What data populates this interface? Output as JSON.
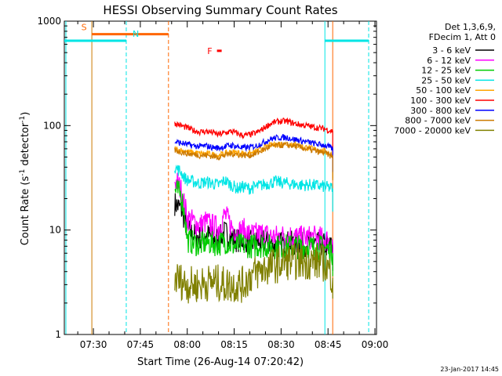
{
  "chart_data": {
    "type": "line",
    "title": "HESSI Observing Summary Count Rates",
    "xlabel": "Start Time (26-Aug-14 07:20:42)",
    "ylabel_main": "Count Rate (s",
    "ylabel_sup1": "-1",
    "ylabel_mid": " detector",
    "ylabel_sup2": "-1",
    "ylabel_end": ")",
    "y_scale": "log",
    "xlim": [
      20.7,
      120.5
    ],
    "ylim": [
      1,
      1000
    ],
    "x_unit": "minutes after 07:00 UT",
    "x_ticks": [
      {
        "value": 30,
        "label": "07:30"
      },
      {
        "value": 45,
        "label": "07:45"
      },
      {
        "value": 60,
        "label": "08:00"
      },
      {
        "value": 75,
        "label": "08:15"
      },
      {
        "value": 90,
        "label": "08:30"
      },
      {
        "value": 105,
        "label": "08:45"
      },
      {
        "value": 120,
        "label": "09:00"
      }
    ],
    "y_ticks": [
      {
        "value": 1,
        "label": "1"
      },
      {
        "value": 10,
        "label": "10"
      },
      {
        "value": 100,
        "label": "100"
      },
      {
        "value": 1000,
        "label": "1000"
      }
    ],
    "legend_header": [
      "Det 1,3,6,9,",
      "FDecim 1, Att 0"
    ],
    "legend_placement": "right",
    "series": [
      {
        "name": "3 - 6 keV",
        "color": "#000000",
        "x": [
          56,
          57,
          58,
          59,
          60,
          62,
          64,
          66,
          68,
          70,
          72,
          74,
          76,
          78,
          80,
          84,
          88,
          92,
          96,
          100,
          104,
          106.5
        ],
        "y": [
          18,
          17,
          16,
          13,
          10,
          9,
          8.5,
          9,
          8.5,
          8.2,
          9.5,
          8.5,
          8,
          8.2,
          7.5,
          7.8,
          7.2,
          7.6,
          7.3,
          7.4,
          7.2,
          6.8
        ]
      },
      {
        "name": "6 - 12 keV",
        "color": "#ff00ff",
        "x": [
          56,
          57,
          58,
          59,
          60,
          62,
          64,
          66,
          68,
          70,
          72,
          74,
          76,
          78,
          80,
          84,
          88,
          92,
          96,
          100,
          104,
          106.5
        ],
        "y": [
          30,
          28,
          24,
          18,
          13,
          12,
          11,
          12,
          11,
          10.5,
          14,
          11,
          9.5,
          10,
          9,
          9.2,
          8.6,
          8.9,
          8.4,
          8.5,
          8.2,
          7.5
        ]
      },
      {
        "name": "12 - 25 keV",
        "color": "#00cc00",
        "x": [
          56,
          57,
          58,
          59,
          60,
          62,
          64,
          66,
          68,
          70,
          72,
          74,
          76,
          78,
          80,
          84,
          88,
          92,
          96,
          100,
          104,
          106.5
        ],
        "y": [
          24,
          23,
          22,
          15,
          8,
          7.5,
          7.2,
          7.6,
          7.4,
          7.3,
          7.8,
          7.2,
          7,
          7.2,
          7,
          7.1,
          6.9,
          7,
          6.9,
          6.9,
          6.8,
          6
        ]
      },
      {
        "name": "25 - 50 keV",
        "color": "#00e5e5",
        "x": [
          56,
          57,
          58,
          59,
          60,
          62,
          64,
          66,
          68,
          70,
          72,
          74,
          76,
          78,
          80,
          84,
          88,
          92,
          96,
          100,
          104,
          106.5
        ],
        "y": [
          40,
          38,
          36,
          32,
          30,
          29,
          28,
          29,
          28,
          27,
          30,
          27,
          25,
          26,
          25,
          27,
          29,
          28,
          27,
          27,
          26,
          25
        ]
      },
      {
        "name": "50 - 100 keV",
        "color": "#ffa500",
        "x": [
          56,
          60,
          62,
          64,
          66,
          68,
          70,
          72,
          74,
          76,
          78,
          80,
          82,
          84,
          86,
          88,
          90,
          92,
          94,
          96,
          98,
          100,
          102,
          104,
          106.5
        ],
        "y": [
          60,
          56,
          55,
          54,
          54,
          53,
          52,
          54,
          56,
          55,
          54,
          54,
          56,
          60,
          64,
          66,
          67,
          67,
          66,
          64,
          62,
          60,
          58,
          57,
          52
        ]
      },
      {
        "name": "100 - 300 keV",
        "color": "#ff0000",
        "x": [
          56,
          60,
          62,
          64,
          66,
          68,
          70,
          72,
          74,
          76,
          78,
          80,
          82,
          84,
          86,
          88,
          90,
          92,
          94,
          96,
          98,
          100,
          102,
          104,
          106.5
        ],
        "y": [
          105,
          95,
          90,
          87,
          88,
          86,
          82,
          85,
          88,
          84,
          80,
          82,
          85,
          92,
          102,
          108,
          110,
          110,
          105,
          102,
          100,
          97,
          95,
          93,
          88
        ]
      },
      {
        "name": "300 - 800 keV",
        "color": "#0000ff",
        "x": [
          56,
          60,
          62,
          64,
          66,
          68,
          70,
          72,
          74,
          76,
          78,
          80,
          82,
          84,
          86,
          88,
          90,
          92,
          94,
          96,
          98,
          100,
          102,
          104,
          106.5
        ],
        "y": [
          70,
          66,
          64,
          63,
          64,
          62,
          61,
          63,
          65,
          63,
          61,
          62,
          64,
          68,
          73,
          76,
          77,
          77,
          74,
          72,
          70,
          68,
          66,
          65,
          60
        ]
      },
      {
        "name": "800 - 7000 keV",
        "color": "#cc7a00",
        "x": [
          56,
          60,
          62,
          64,
          66,
          68,
          70,
          72,
          74,
          76,
          78,
          80,
          82,
          84,
          86,
          88,
          90,
          92,
          94,
          96,
          98,
          100,
          102,
          104,
          106.5
        ],
        "y": [
          58,
          54,
          53,
          52,
          52,
          51,
          50,
          52,
          54,
          53,
          52,
          52,
          54,
          58,
          62,
          64,
          65,
          65,
          64,
          62,
          60,
          58,
          56,
          55,
          50
        ]
      },
      {
        "name": "7000 - 20000 keV",
        "color": "#808000",
        "x": [
          56,
          60,
          64,
          68,
          72,
          76,
          78,
          80,
          84,
          88,
          92,
          96,
          100,
          104,
          106.5
        ],
        "y": [
          3.5,
          3,
          3,
          3.2,
          3,
          3,
          3,
          3.6,
          4.2,
          4.6,
          5,
          5,
          5,
          4.8,
          3.5
        ]
      }
    ],
    "annotations": [
      {
        "label": "S",
        "x": 29.5,
        "x_end": 54,
        "y": 750,
        "color": "#ff6600"
      },
      {
        "label": "N",
        "x": 20.7,
        "x_end": 40.5,
        "y": 650,
        "color": "#00e5e5"
      },
      {
        "label": "",
        "x": 104,
        "x_end": 118,
        "y": 650,
        "color": "#00e5e5"
      },
      {
        "label": "F",
        "x": 69.5,
        "x_end": 71,
        "y": 520,
        "color": "#ff0000"
      }
    ],
    "vlines": [
      {
        "x": 21.2,
        "color": "#00e5e5",
        "style": "solid"
      },
      {
        "x": 29.5,
        "color": "#cc7a00",
        "style": "solid"
      },
      {
        "x": 40.5,
        "color": "#00e5e5",
        "style": "dashed"
      },
      {
        "x": 54,
        "color": "#ff6600",
        "style": "dashed"
      },
      {
        "x": 104,
        "color": "#00e5e5",
        "style": "solid"
      },
      {
        "x": 106.5,
        "color": "#ff6600",
        "style": "solid"
      },
      {
        "x": 118,
        "color": "#00e5e5",
        "style": "dashed"
      }
    ],
    "grid": false,
    "timestamp": "23-Jan-2017 14:45"
  }
}
